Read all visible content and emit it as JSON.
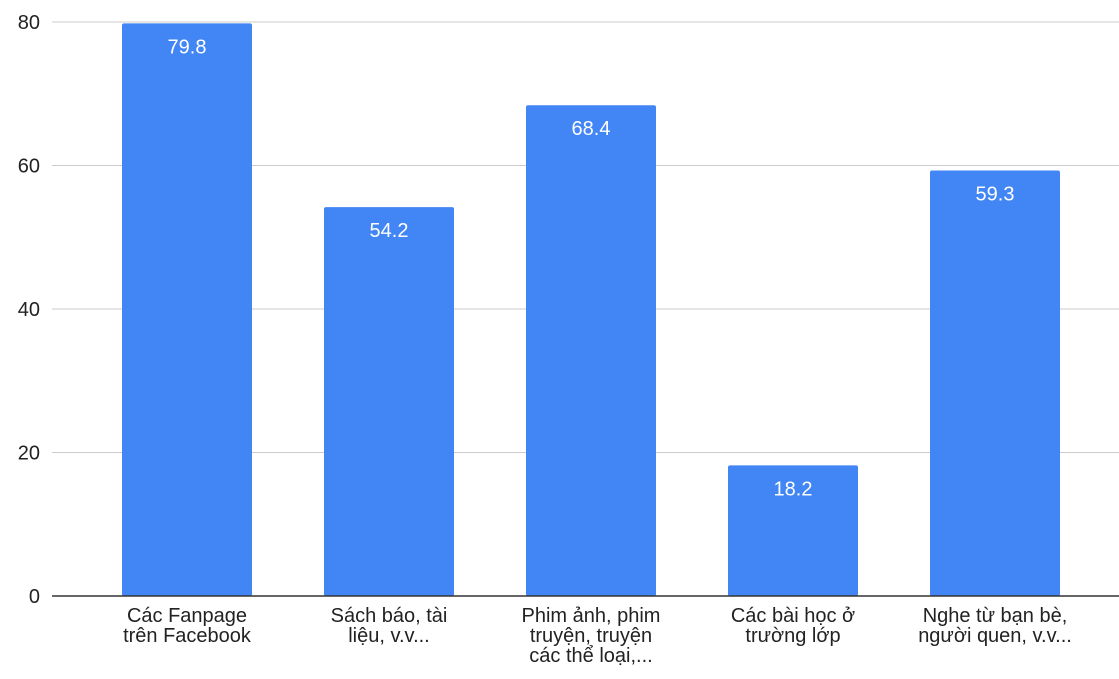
{
  "chart_data": {
    "type": "bar",
    "title": "",
    "xlabel": "",
    "ylabel": "",
    "categories": [
      [
        "Các Fanpage",
        "trên Facebook"
      ],
      [
        "Sách báo, tài",
        "liệu, v.v..."
      ],
      [
        "Phim ảnh, phim",
        "truyện, truyện",
        "các thể loại,..."
      ],
      [
        "Các bài học ở",
        "trường lớp"
      ],
      [
        "Nghe từ bạn bè,",
        "người quen, v.v..."
      ]
    ],
    "values": [
      79.8,
      54.2,
      68.4,
      18.2,
      59.3
    ],
    "value_labels": [
      "79.8",
      "54.2",
      "68.4",
      "18.2",
      "59.3"
    ],
    "ylim": [
      0,
      80
    ],
    "y_ticks": [
      {
        "value": 0,
        "label": "0"
      },
      {
        "value": 20,
        "label": "20"
      },
      {
        "value": 40,
        "label": "40"
      },
      {
        "value": 60,
        "label": "60"
      },
      {
        "value": 80,
        "label": "80"
      }
    ],
    "grid": true,
    "legend": "none",
    "bar_color": "#4285f4",
    "grid_color": "#cccccc",
    "axis_color": "#333333"
  }
}
